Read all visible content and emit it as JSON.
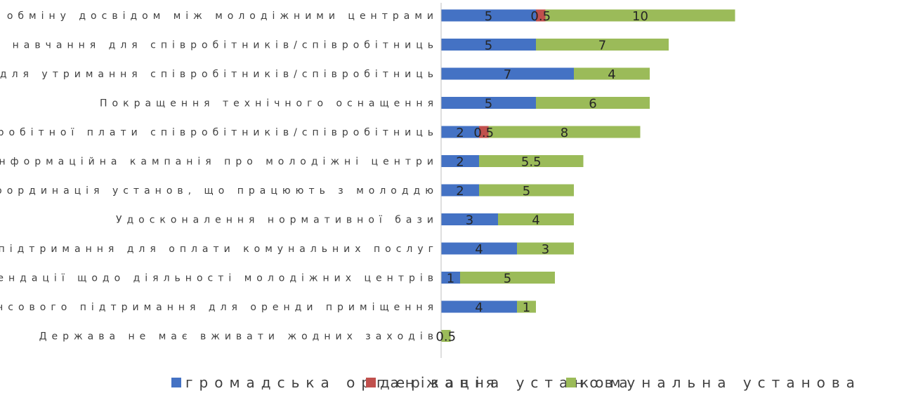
{
  "chart_data": {
    "type": "bar",
    "orientation": "horizontal",
    "stacked": true,
    "categories": [
      "Стимулювання обміну досвідом між молодіжними центрами",
      "Система навчання для співробітників/співробітниць",
      "Надання фінансової допомоги для утримання співробітників/співробітниць",
      "Покращення технічного оснащення",
      "Підвищення заробітної плати співробітників/співробітниць",
      "Інформаційна кампанія про молодіжні центри",
      "Координація установ, що працюють з молоддю",
      "Удосконалення нормативної бази",
      "Надання фінансового підтримання для оплати комунальних послуг",
      "Надання рекомендації щодо діяльності молодіжних центрів",
      "Надання фінансового підтримання для оренди приміщення",
      "Держава не має вживати жодних заходів"
    ],
    "series": [
      {
        "name": "громадська організація",
        "color": "#4472C4",
        "values": [
          5,
          5,
          7,
          5,
          2,
          2,
          2,
          3,
          4,
          1,
          4,
          0
        ],
        "labels": [
          "5",
          "5",
          "7",
          "5",
          "2",
          "2",
          "2",
          "3",
          "4",
          "1",
          "4",
          ""
        ]
      },
      {
        "name": "державна установа",
        "color": "#C0504D",
        "values": [
          0.5,
          0,
          0,
          0,
          0.5,
          0,
          0,
          0,
          0,
          0,
          0,
          0
        ],
        "labels": [
          "0.5",
          "",
          "",
          "",
          "0.5",
          "",
          "",
          "",
          "",
          "",
          "",
          ""
        ]
      },
      {
        "name": "комунальна установа",
        "color": "#9BBB59",
        "values": [
          10,
          7,
          4,
          6,
          8,
          5.5,
          5,
          4,
          3,
          5,
          1,
          0.5
        ],
        "labels": [
          "10",
          "7",
          "4",
          "6",
          "8",
          "5.5",
          "5",
          "4",
          "3",
          "5",
          "1",
          "0.5"
        ]
      }
    ],
    "xlim": [
      0,
      20
    ],
    "grid": false,
    "legend_position": "bottom"
  }
}
